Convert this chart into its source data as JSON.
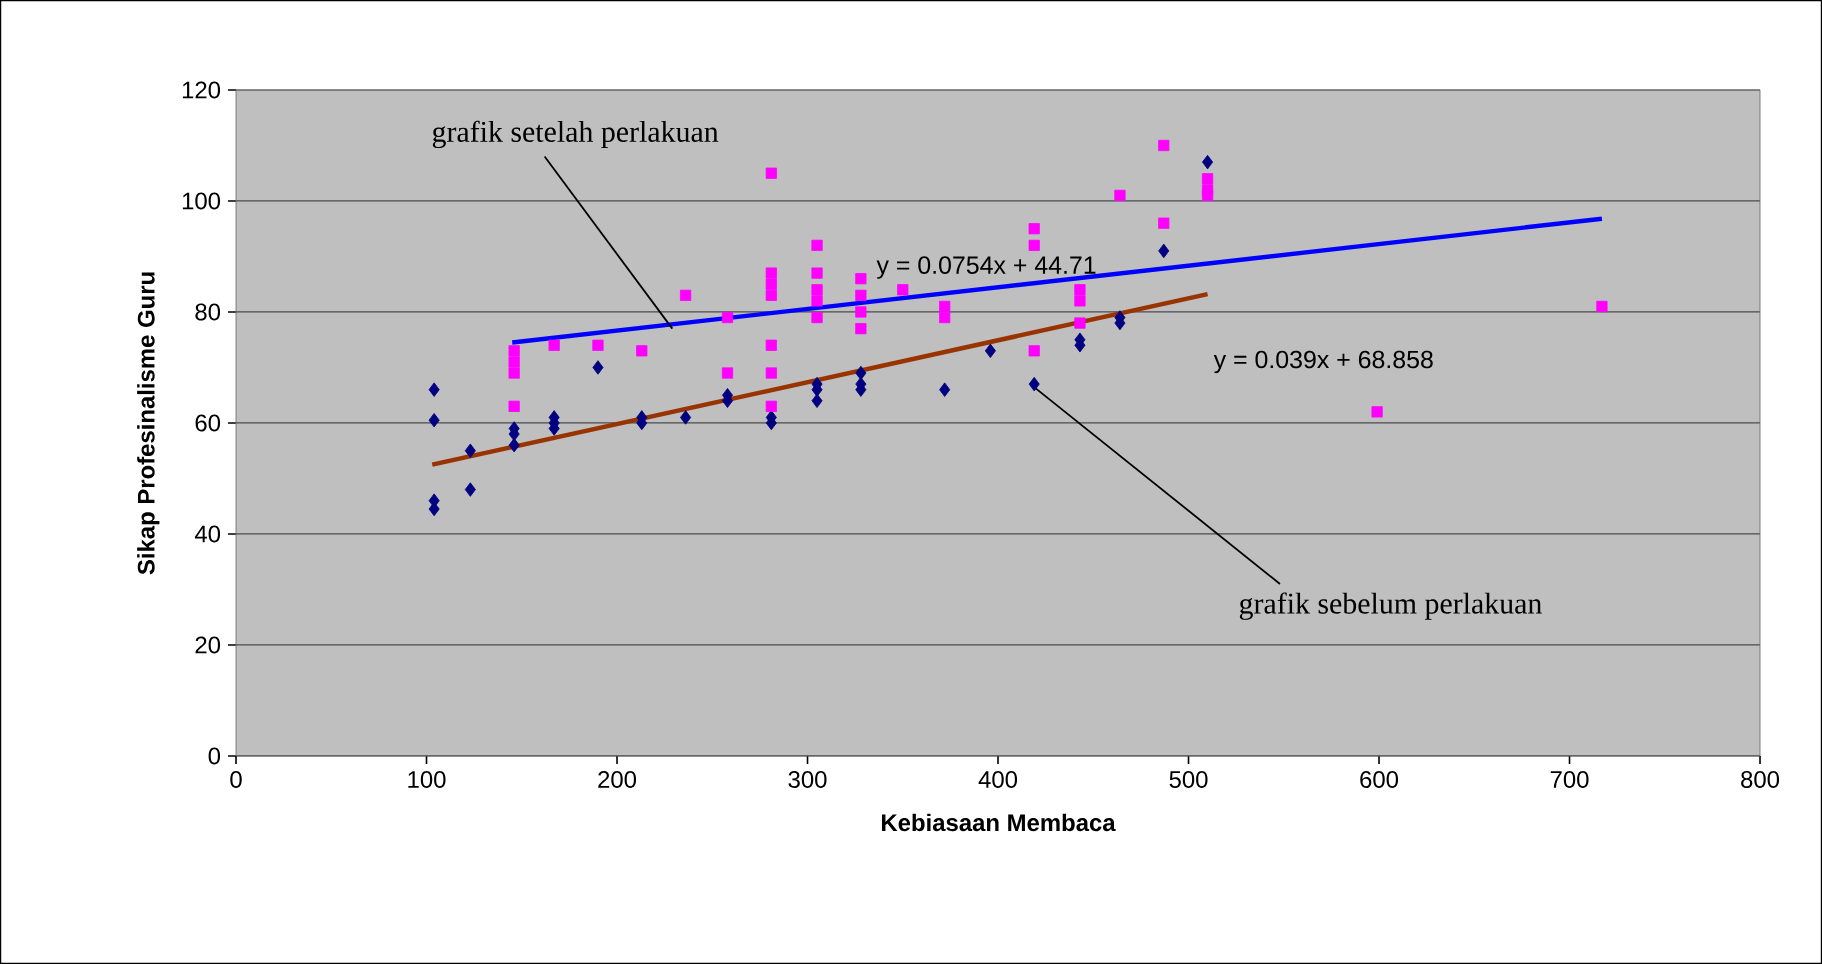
{
  "chart_data": {
    "type": "scatter",
    "xlabel": "Kebiasaan Membaca",
    "ylabel": "Sikap Profesinalisme Guru",
    "xlim": [
      0,
      800
    ],
    "xticks": [
      0,
      100,
      200,
      300,
      400,
      500,
      600,
      700,
      800
    ],
    "ylim": [
      0,
      120
    ],
    "yticks": [
      0,
      20,
      40,
      60,
      80,
      100,
      120
    ],
    "grid": "y",
    "series": [
      {
        "marker": "diamond",
        "color": "#000080",
        "x": [
          104,
          104,
          104,
          104,
          123,
          123,
          146,
          146,
          146,
          167,
          167,
          167,
          190,
          213,
          213,
          236,
          258,
          258,
          281,
          281,
          305,
          305,
          305,
          328,
          328,
          328,
          372,
          396,
          419,
          443,
          443,
          464,
          464,
          487,
          510
        ],
        "values": [
          66,
          60.5,
          46,
          44.5,
          55,
          48,
          59,
          58,
          56,
          61,
          60,
          59,
          70,
          61,
          60,
          61,
          65,
          64,
          61,
          60,
          67,
          66,
          64,
          69,
          67,
          66,
          66,
          73,
          67,
          75,
          74,
          79,
          78,
          91,
          107
        ]
      },
      {
        "marker": "square",
        "color": "#ff00ff",
        "x": [
          146,
          146,
          146,
          146,
          167,
          190,
          213,
          236,
          258,
          258,
          281,
          281,
          281,
          281,
          281,
          281,
          281,
          305,
          305,
          305,
          305,
          305,
          328,
          328,
          328,
          328,
          350,
          372,
          372,
          419,
          419,
          419,
          443,
          443,
          443,
          464,
          487,
          487,
          510,
          510,
          510,
          599,
          717
        ],
        "values": [
          73,
          71,
          69,
          63,
          74,
          74,
          73,
          83,
          79,
          69,
          105,
          87,
          85,
          83,
          74,
          69,
          63,
          92,
          87,
          84,
          82,
          79,
          86,
          83,
          80,
          77,
          84,
          81,
          79,
          95,
          92,
          73,
          84,
          82,
          78,
          101,
          110,
          96,
          104,
          102,
          101,
          62,
          81
        ]
      },
      {
        "type": "line",
        "marker": "none",
        "color": "#0000ff",
        "x": [
          145,
          717
        ],
        "values": [
          74.5,
          96.8
        ]
      },
      {
        "type": "line",
        "marker": "none",
        "color": "#993300",
        "x": [
          103,
          510
        ],
        "values": [
          52.5,
          83.2
        ]
      }
    ],
    "annotations": [
      {
        "text": "grafik setelah perlakuan",
        "x": 229,
        "y": 77
      },
      {
        "text": "grafik sebelum perlakuan",
        "x": 417,
        "y": 67
      },
      "y = 0.0754x + 44.71",
      "y = 0.039x + 68.858"
    ]
  }
}
